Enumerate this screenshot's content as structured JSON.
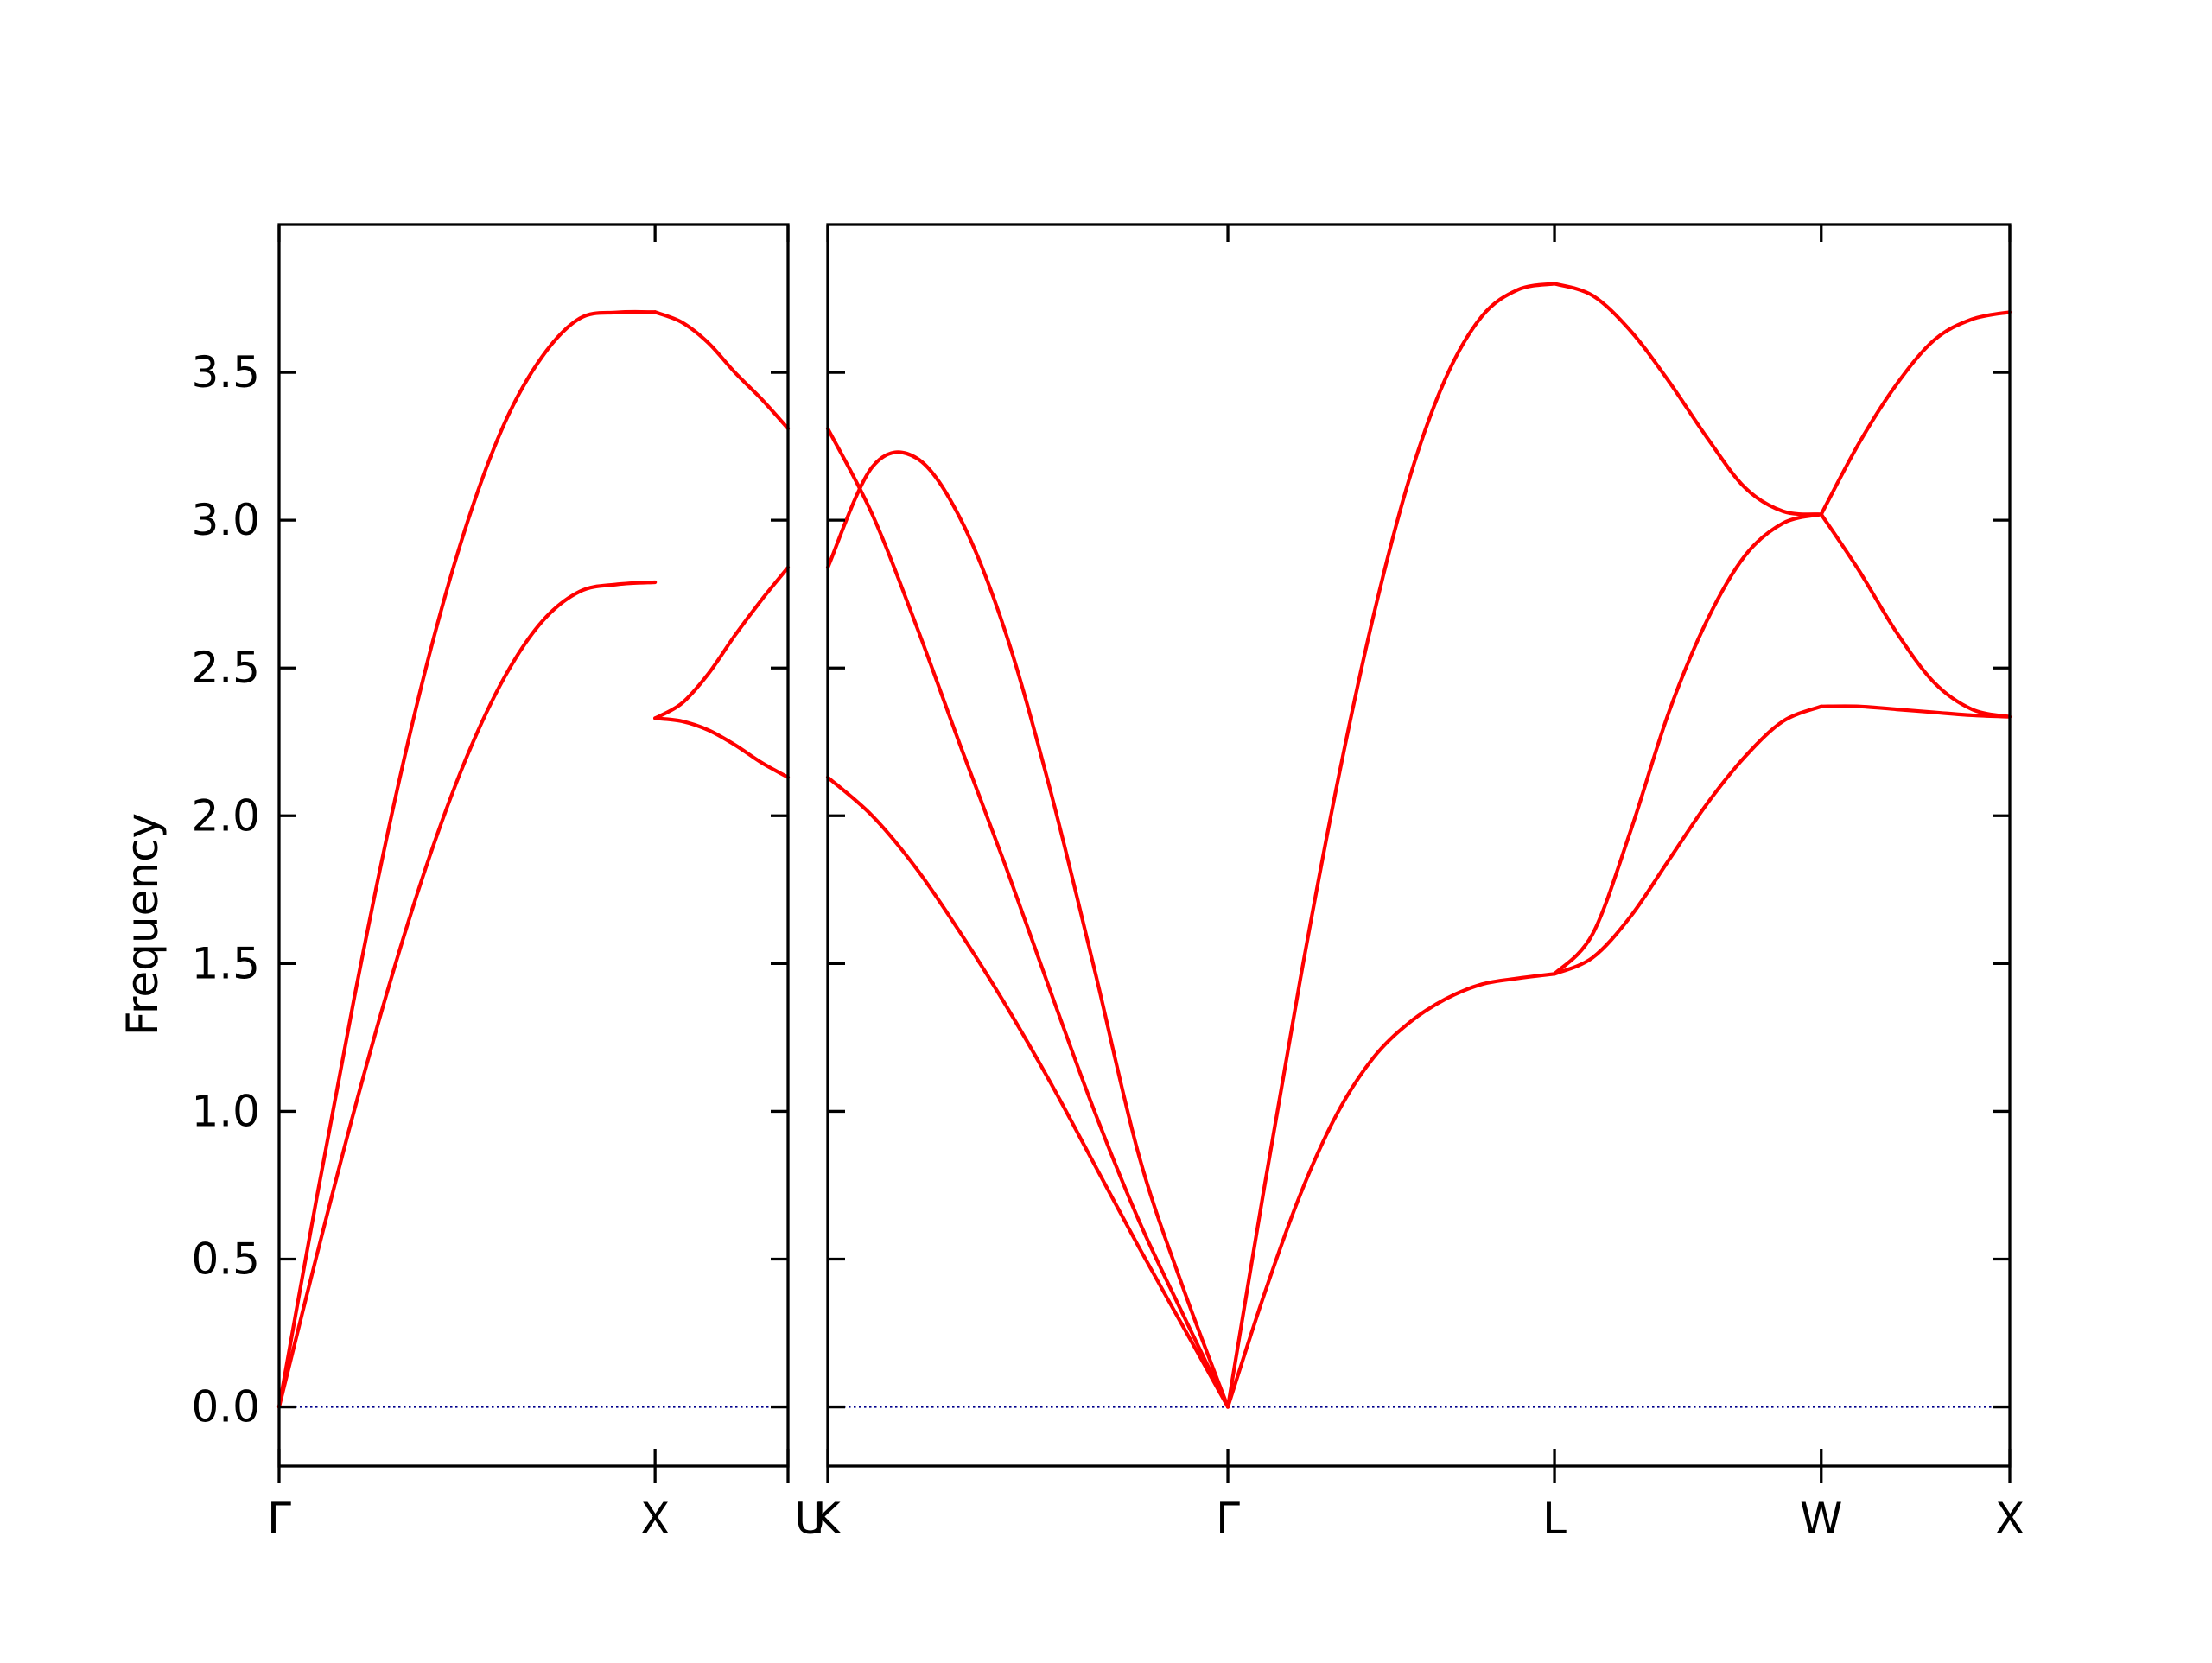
{
  "chart_data": {
    "type": "line",
    "title": "",
    "ylabel": "Frequency",
    "ylim": [
      -0.2,
      4.0
    ],
    "yticks": [
      0.0,
      0.5,
      1.0,
      1.5,
      2.0,
      2.5,
      3.0,
      3.5
    ],
    "ytick_labels": [
      "0.0",
      "0.5",
      "1.0",
      "1.5",
      "2.0",
      "2.5",
      "3.0",
      "3.5"
    ],
    "grid": false,
    "colors": {
      "bands": "#ff0000",
      "zero_line": "#00008b",
      "axes": "#000000"
    },
    "panels": [
      {
        "xticks": [
          0.0,
          1.0,
          1.3536
        ],
        "xtick_labels": [
          "Γ",
          "X",
          ""
        ],
        "segments": [
          {
            "path": "Γ-X",
            "x_start": 0.0,
            "x_end": 1.0,
            "bands": [
              [
                0.0,
                0.512,
                1.004,
                1.458,
                1.861,
                2.202,
                2.47,
                2.658,
                2.759,
                2.783,
                2.79
              ],
              [
                0.0,
                0.707,
                1.385,
                2.007,
                2.547,
                2.99,
                3.329,
                3.554,
                3.683,
                3.703,
                3.704
              ]
            ]
          },
          {
            "path": "X-U",
            "x_start": 1.0,
            "x_end": 1.3536,
            "bands": [
              [
                2.33,
                2.32,
                2.29,
                2.24,
                2.18,
                2.13
              ],
              [
                2.33,
                2.38,
                2.48,
                2.61,
                2.73,
                2.84
              ],
              [
                3.704,
                3.67,
                3.6,
                3.5,
                3.41,
                3.31
              ]
            ]
          }
        ]
      },
      {
        "xticks": [
          0.0,
          1.0607,
          1.9267,
          2.6338,
          3.1338
        ],
        "xtick_labels": [
          "K",
          "Γ",
          "L",
          "W",
          "X"
        ],
        "left_corner_label": "U",
        "segments": [
          {
            "path": "K-Γ",
            "x_start": 0.0,
            "x_end": 1.0607,
            "bands": [
              [
                2.13,
                2.0,
                1.82,
                1.6,
                1.36,
                1.1,
                0.82,
                0.54,
                0.27,
                0.0
              ],
              [
                3.31,
                3.02,
                2.64,
                2.23,
                1.83,
                1.41,
                1.0,
                0.63,
                0.31,
                0.0
              ],
              [
                2.84,
                3.18,
                3.21,
                3.0,
                2.62,
                2.09,
                1.48,
                0.85,
                0.4,
                0.0
              ]
            ]
          },
          {
            "path": "Γ-L",
            "x_start": 1.0607,
            "x_end": 1.9267,
            "bands": [
              [
                0.0,
                0.38,
                0.72,
                0.99,
                1.18,
                1.3,
                1.38,
                1.43,
                1.45,
                1.465
              ],
              [
                0.0,
                0.74,
                1.45,
                2.1,
                2.67,
                3.14,
                3.48,
                3.69,
                3.78,
                3.8
              ]
            ]
          },
          {
            "path": "L-W",
            "x_start": 1.9267,
            "x_end": 2.6338,
            "bands": [
              [
                1.465,
                1.52,
                1.66,
                1.85,
                2.04,
                2.2,
                2.32,
                2.37
              ],
              [
                1.465,
                1.6,
                1.95,
                2.35,
                2.66,
                2.88,
                2.99,
                3.02
              ],
              [
                3.8,
                3.76,
                3.64,
                3.47,
                3.28,
                3.11,
                3.03,
                3.02
              ]
            ]
          },
          {
            "path": "W-X",
            "x_start": 2.6338,
            "x_end": 3.1338,
            "bands": [
              [
                2.37,
                2.37,
                2.36,
                2.35,
                2.34,
                2.335
              ],
              [
                3.02,
                2.83,
                2.62,
                2.45,
                2.36,
                2.335
              ],
              [
                3.02,
                3.26,
                3.46,
                3.61,
                3.68,
                3.704
              ]
            ]
          }
        ]
      }
    ]
  }
}
